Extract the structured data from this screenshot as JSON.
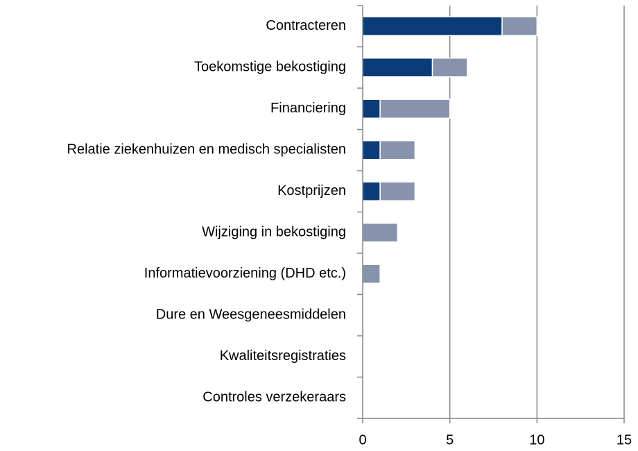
{
  "chart_data": {
    "type": "bar",
    "orientation": "horizontal",
    "stacked": true,
    "categories": [
      "Contracteren",
      "Toekomstige bekostiging",
      "Financiering",
      "Relatie ziekenhuizen en medisch specialisten",
      "Kostprijzen",
      "Wijziging in bekostiging",
      "Informatievoorziening (DHD etc.)",
      "Dure en Weesgeneesmiddelen",
      "Kwaliteitsregistraties",
      "Controles verzekeraars"
    ],
    "series": [
      {
        "color": "#0b3b78",
        "values": [
          8,
          4,
          1,
          1,
          1,
          0,
          0,
          0,
          0,
          0
        ]
      },
      {
        "color": "#8792ad",
        "values": [
          2,
          2,
          4,
          2,
          2,
          2,
          1,
          0,
          0,
          0
        ]
      }
    ],
    "xlim": [
      0,
      15
    ],
    "xticks": [
      0,
      5,
      10,
      15
    ],
    "grid": true
  }
}
